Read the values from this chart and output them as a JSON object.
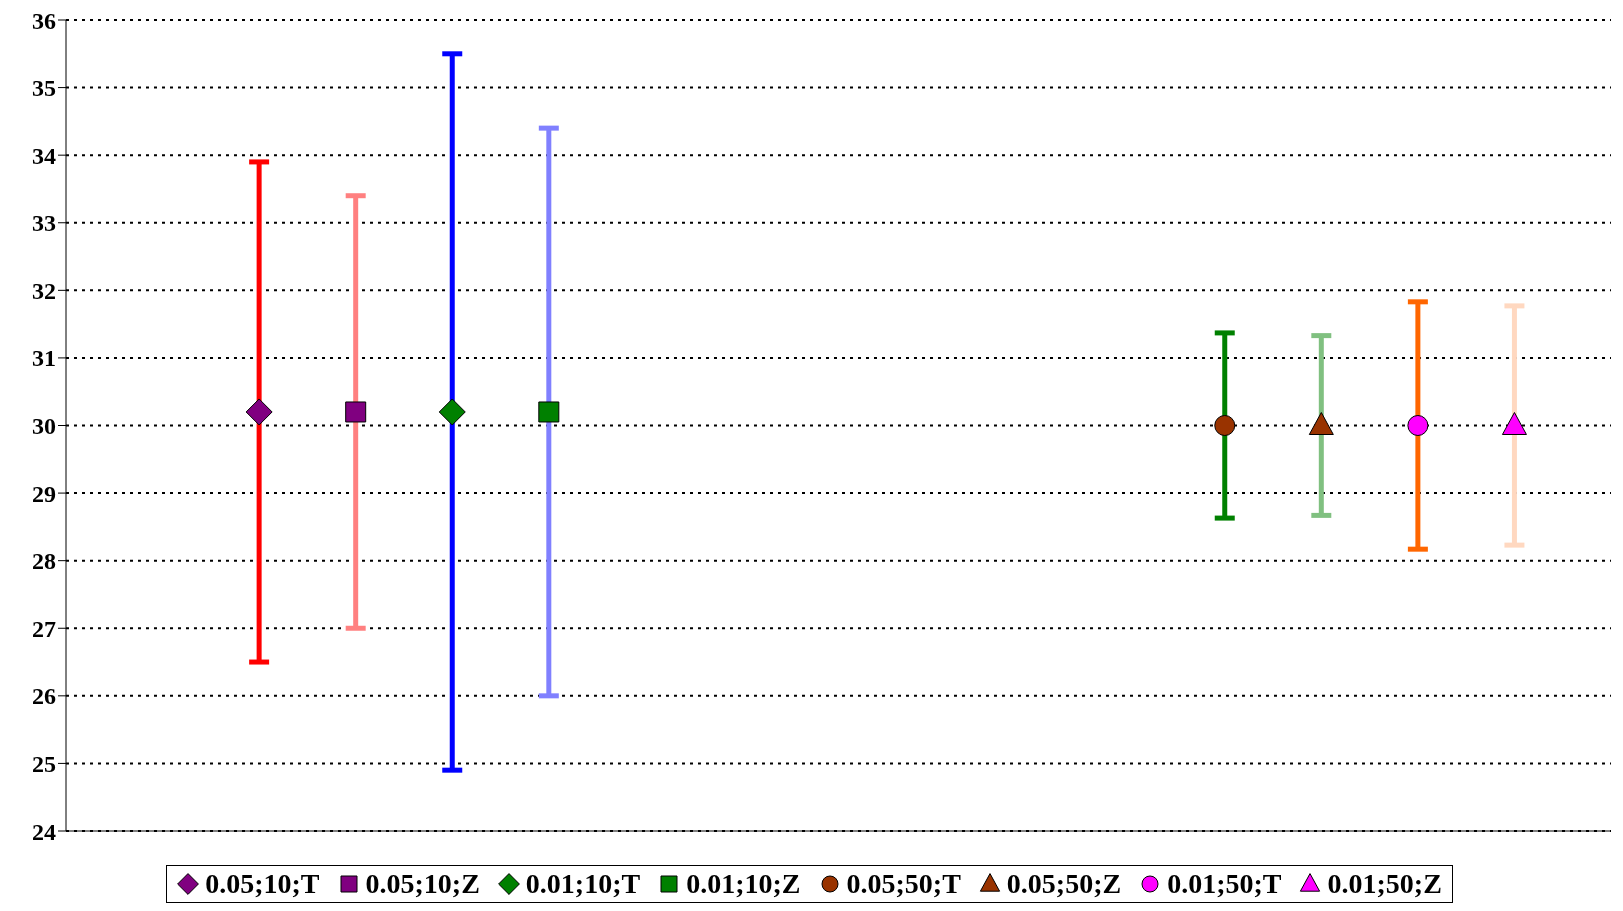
{
  "chart_data": {
    "type": "scatter",
    "categories": [
      null,
      null,
      null,
      null,
      null,
      null,
      null,
      null,
      null,
      null,
      null,
      null,
      null,
      null,
      null,
      null,
      null
    ],
    "ylim": [
      24,
      36
    ],
    "yticks": [
      24,
      25,
      26,
      27,
      28,
      29,
      30,
      31,
      32,
      33,
      34,
      35,
      36
    ],
    "grid": "y",
    "line_style": "dotted",
    "legend": "bottom",
    "tick_labels": "y",
    "series": [
      {
        "name": "0.05;10;T",
        "color": "#ff0000",
        "marker": "diamond",
        "colors": [
          null,
          null,
          "#800080",
          null,
          null,
          null,
          null,
          null,
          null,
          null,
          null,
          null,
          null,
          null,
          null,
          null,
          null
        ],
        "values": [
          null,
          null,
          30.2,
          null,
          null,
          null,
          null,
          null,
          null,
          null,
          null,
          null,
          null,
          null,
          null,
          null,
          null
        ],
        "errors": [
          null,
          null,
          3.7,
          null,
          null,
          null,
          null,
          null,
          null,
          null,
          null,
          null,
          null,
          null,
          null,
          null,
          null
        ]
      },
      {
        "name": "0.05;10;Z",
        "color": "#ff8080",
        "marker": "square",
        "colors": [
          null,
          null,
          null,
          "#800080",
          null,
          null,
          null,
          null,
          null,
          null,
          null,
          null,
          null,
          null,
          null,
          null,
          null
        ],
        "values": [
          null,
          null,
          null,
          30.2,
          null,
          null,
          null,
          null,
          null,
          null,
          null,
          null,
          null,
          null,
          null,
          null,
          null
        ],
        "errors": [
          null,
          null,
          null,
          3.2,
          null,
          null,
          null,
          null,
          null,
          null,
          null,
          null,
          null,
          null,
          null,
          null,
          null
        ]
      },
      {
        "name": "0.01;10;T",
        "color": "#0000ff",
        "marker": "diamond",
        "colors": [
          null,
          null,
          null,
          null,
          "#008000",
          null,
          null,
          null,
          null,
          null,
          null,
          null,
          null,
          null,
          null,
          null,
          null
        ],
        "values": [
          null,
          null,
          null,
          null,
          30.2,
          null,
          null,
          null,
          null,
          null,
          null,
          null,
          null,
          null,
          null,
          null,
          null
        ],
        "errors": [
          null,
          null,
          null,
          null,
          5.3,
          null,
          null,
          null,
          null,
          null,
          null,
          null,
          null,
          null,
          null,
          null,
          null
        ]
      },
      {
        "name": "0.01;10;Z",
        "color": "#8080ff",
        "marker": "square",
        "colors": [
          null,
          null,
          null,
          null,
          null,
          "#008000",
          null,
          null,
          null,
          null,
          null,
          null,
          null,
          null,
          null,
          null,
          null
        ],
        "values": [
          null,
          null,
          null,
          null,
          null,
          30.2,
          null,
          null,
          null,
          null,
          null,
          null,
          null,
          null,
          null,
          null,
          null
        ],
        "errors": [
          null,
          null,
          null,
          null,
          null,
          4.2,
          null,
          null,
          null,
          null,
          null,
          null,
          null,
          null,
          null,
          null,
          null
        ]
      },
      {
        "name": "0.05;50;T",
        "color": "#008000",
        "marker": "circle",
        "colors": [
          null,
          null,
          null,
          null,
          null,
          null,
          null,
          null,
          null,
          null,
          null,
          null,
          "#993300",
          null,
          null,
          null,
          null
        ],
        "values": [
          null,
          null,
          null,
          null,
          null,
          null,
          null,
          null,
          null,
          null,
          null,
          null,
          30,
          null,
          null,
          null,
          null
        ],
        "errors": [
          null,
          null,
          null,
          null,
          null,
          null,
          null,
          null,
          null,
          null,
          null,
          null,
          1.37,
          null,
          null,
          null,
          null
        ]
      },
      {
        "name": "0.05;50;Z",
        "color": "#80c080",
        "marker": "triangle",
        "colors": [
          null,
          null,
          null,
          null,
          null,
          null,
          null,
          null,
          null,
          null,
          null,
          null,
          null,
          "#993300",
          null,
          null,
          null
        ],
        "values": [
          null,
          null,
          null,
          null,
          null,
          null,
          null,
          null,
          null,
          null,
          null,
          null,
          null,
          30,
          null,
          null,
          null
        ],
        "errors": [
          null,
          null,
          null,
          null,
          null,
          null,
          null,
          null,
          null,
          null,
          null,
          null,
          null,
          1.33,
          null,
          null,
          null
        ]
      },
      {
        "name": "0.01;50;T",
        "color": "#ff6600",
        "marker": "circle",
        "colors": [
          null,
          null,
          null,
          null,
          null,
          null,
          null,
          null,
          null,
          null,
          null,
          null,
          null,
          null,
          "#ff00ff",
          null,
          null
        ],
        "values": [
          null,
          null,
          null,
          null,
          null,
          null,
          null,
          null,
          null,
          null,
          null,
          null,
          null,
          null,
          30,
          null,
          null
        ],
        "errors": [
          null,
          null,
          null,
          null,
          null,
          null,
          null,
          null,
          null,
          null,
          null,
          null,
          null,
          null,
          1.83,
          null,
          null
        ]
      },
      {
        "name": "0.01;50;Z",
        "color": "#ffd8c0",
        "marker": "triangle",
        "colors": [
          null,
          null,
          null,
          null,
          null,
          null,
          null,
          null,
          null,
          null,
          null,
          null,
          null,
          null,
          null,
          "#ff00ff",
          null
        ],
        "values": [
          null,
          null,
          null,
          null,
          null,
          null,
          null,
          null,
          null,
          null,
          null,
          null,
          null,
          null,
          null,
          30,
          null
        ],
        "errors": [
          null,
          null,
          null,
          null,
          null,
          null,
          null,
          null,
          null,
          null,
          null,
          null,
          null,
          null,
          null,
          1.77,
          null
        ]
      }
    ]
  }
}
